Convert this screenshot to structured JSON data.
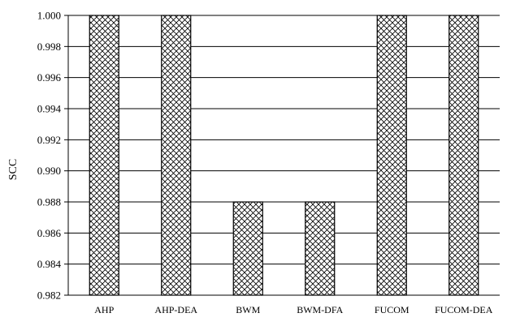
{
  "colors": {
    "bar_fill": "#ffffff",
    "bar_stroke": "#000000",
    "hatch": "#000000",
    "grid": "#000000",
    "axis": "#000000"
  },
  "chart_data": {
    "type": "bar",
    "title": "",
    "xlabel": "",
    "ylabel": "SCC",
    "categories": [
      "AHP",
      "AHP-DEA",
      "BWM",
      "BWM-DFA",
      "FUCOM",
      "FUCOM-DEA"
    ],
    "values": [
      1.0,
      1.0,
      0.988,
      0.988,
      1.0,
      1.0
    ],
    "ylim": [
      0.982,
      1.0
    ],
    "yticks": [
      "0.982",
      "0.984",
      "0.986",
      "0.988",
      "0.990",
      "0.992",
      "0.994",
      "0.996",
      "0.998",
      "1.000"
    ],
    "grid": true,
    "bar_pattern": "cross-hatch",
    "legend": "none"
  }
}
